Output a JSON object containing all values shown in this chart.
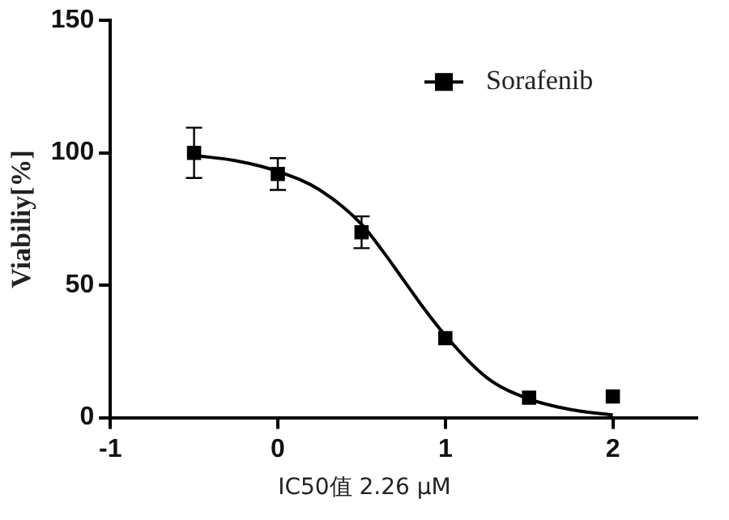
{
  "chart_data": {
    "type": "scatter",
    "xlabel": "IC50值 2.26 μM",
    "ylabel": "Viabiliy[%]",
    "xlim": [
      -1,
      2.5
    ],
    "xticks": [
      -1,
      0,
      1,
      2
    ],
    "ylim": [
      0,
      150
    ],
    "yticks": [
      0,
      50,
      100,
      150
    ],
    "grid": false,
    "legend": "top right",
    "marker": "square",
    "series": [
      {
        "name": "Sorafenib",
        "type": "scatter",
        "color": "#000000",
        "x": [
          -0.5,
          0,
          0.5,
          1,
          1.5,
          2
        ],
        "values": [
          100,
          92,
          70,
          30,
          7.5,
          8
        ],
        "errors": [
          9.5,
          6,
          6,
          null,
          null,
          null
        ]
      },
      {
        "type": "line",
        "color": "#000000",
        "marker": "none",
        "x": [
          -0.5,
          -0.25,
          0,
          0.25,
          0.5,
          0.625,
          0.75,
          0.875,
          1,
          1.25,
          1.5,
          1.75,
          2
        ],
        "values": [
          99,
          97,
          93,
          86,
          73,
          63,
          52,
          41,
          31,
          15,
          7,
          3,
          1
        ]
      }
    ]
  }
}
